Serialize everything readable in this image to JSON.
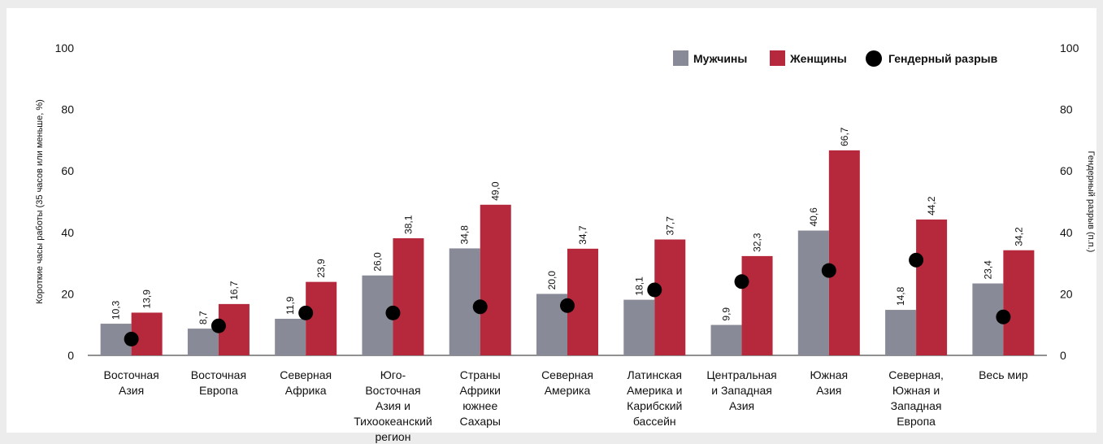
{
  "chart_data": {
    "type": "bar",
    "categories": [
      [
        "Восточная",
        "Азия"
      ],
      [
        "Восточная",
        "Европа"
      ],
      [
        "Северная",
        "Африка"
      ],
      [
        "Юго-",
        "Восточная",
        "Азия и",
        "Тихоокеанский",
        "регион"
      ],
      [
        "Страны",
        "Африки",
        "южнее",
        "Сахары"
      ],
      [
        "Северная",
        "Америка"
      ],
      [
        "Латинская",
        "Америка и",
        "Карибский",
        "бассейн"
      ],
      [
        "Центральная",
        "и Западная",
        "Азия"
      ],
      [
        "Южная",
        "Азия"
      ],
      [
        "Северная,",
        "Южная и",
        "Западная",
        "Европа"
      ],
      [
        "Весь мир"
      ]
    ],
    "series": [
      {
        "name": "Мужчины",
        "color": "#898a97",
        "values": [
          10.3,
          8.7,
          11.9,
          26.0,
          34.8,
          20.0,
          18.1,
          9.9,
          40.6,
          14.8,
          23.4
        ],
        "labels": [
          "10,3",
          "8,7",
          "11,9",
          "26,0",
          "34,8",
          "20,0",
          "18,1",
          "9,9",
          "40,6",
          "14,8",
          "23,4"
        ]
      },
      {
        "name": "Женщины",
        "color": "#b6283b",
        "values": [
          13.9,
          16.7,
          23.9,
          38.1,
          49.0,
          34.7,
          37.7,
          32.3,
          66.7,
          44.2,
          34.2
        ],
        "labels": [
          "13,9",
          "16,7",
          "23,9",
          "38,1",
          "49,0",
          "34,7",
          "37,7",
          "32,3",
          "66,7",
          "44,2",
          "34,2"
        ]
      },
      {
        "name": "Гендерный разрыв",
        "type": "scatter",
        "color": "#000000",
        "values": [
          5.3,
          9.6,
          13.8,
          13.8,
          15.8,
          16.2,
          21.3,
          24.0,
          27.6,
          31.0,
          12.5
        ]
      }
    ],
    "ylabel": "Короткие часы работы (35 часов или меньше, %)",
    "y2label": "Гендерный разрыв (п.п.)",
    "ylim": [
      0,
      100
    ],
    "y2lim": [
      0,
      100
    ],
    "yticks": [
      0,
      20,
      40,
      60,
      80,
      100
    ],
    "legend_position": "top-right",
    "grid": false
  }
}
